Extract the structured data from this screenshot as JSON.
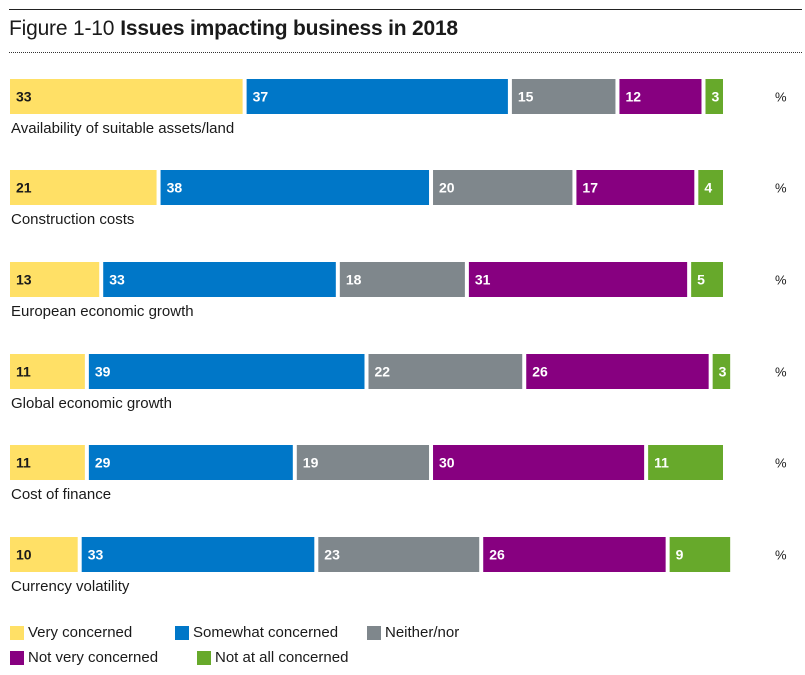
{
  "chart_data": {
    "type": "bar",
    "orientation": "horizontal",
    "stacked": true,
    "title_number": "Figure 1-10",
    "title": "Issues impacting business in 2018",
    "unit_label": "%",
    "categories": [
      "Availability of suitable assets/land",
      "Construction costs",
      "European economic growth",
      "Global economic growth",
      "Cost of finance",
      "Currency volatility"
    ],
    "series": [
      {
        "name": "Very concerned",
        "color": "#FFE066",
        "label_color": "#1a1a1a",
        "values": [
          33,
          21,
          13,
          11,
          11,
          10
        ]
      },
      {
        "name": "Somewhat concerned",
        "color": "#0077C8",
        "label_color": "#ffffff",
        "values": [
          37,
          38,
          33,
          39,
          29,
          33
        ]
      },
      {
        "name": "Neither/nor",
        "color": "#7F878C",
        "label_color": "#ffffff",
        "values": [
          15,
          20,
          18,
          22,
          19,
          23
        ]
      },
      {
        "name": "Not very concerned",
        "color": "#870080",
        "label_color": "#ffffff",
        "values": [
          12,
          17,
          31,
          26,
          30,
          26
        ]
      },
      {
        "name": "Not at all concerned",
        "color": "#67A92B",
        "label_color": "#ffffff",
        "values": [
          3,
          4,
          5,
          3,
          11,
          9
        ]
      }
    ],
    "legend_position": "bottom-left",
    "grid": false
  }
}
